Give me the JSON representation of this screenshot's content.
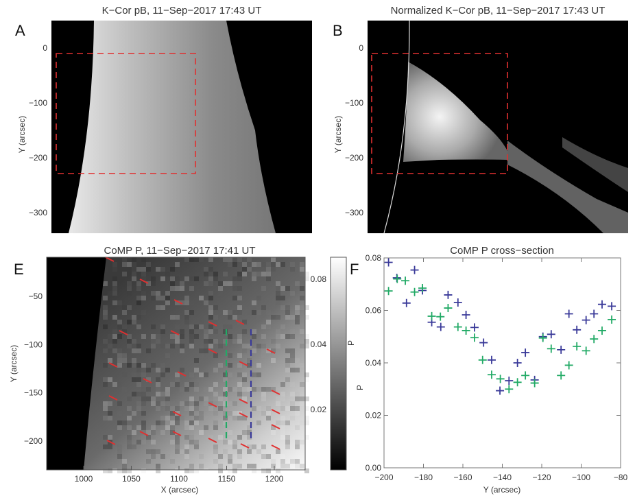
{
  "panels": {
    "A": {
      "letter": "A",
      "title": "K−Cor pB, 11−Sep−2017 17:43 UT",
      "ylabel": "Y (arcsec)",
      "yticks": [
        "0",
        "−100",
        "−200",
        "−300"
      ]
    },
    "B": {
      "letter": "B",
      "title": "Normalized K−Cor pB, 11−Sep−2017 17:43 UT",
      "ylabel": "Y (arcsec)",
      "yticks": [
        "0",
        "−100",
        "−200",
        "−300"
      ]
    },
    "E": {
      "letter": "E",
      "title": "CoMP P, 11−Sep−2017 17:41 UT",
      "xlabel": "X (arcsec)",
      "ylabel": "Y (arcsec)",
      "xticks": [
        "1000",
        "1050",
        "1100",
        "1150",
        "1200"
      ],
      "yticks": [
        "−50",
        "−100",
        "−150",
        "−200"
      ],
      "colorbar": {
        "label": "P",
        "ticks": [
          "0.08",
          "0.04",
          "0.02"
        ],
        "scale": "log"
      },
      "cut_colors": {
        "green": "#22aa66",
        "blue": "#3a3a99"
      },
      "vector_color": "#e03030"
    },
    "F": {
      "letter": "F"
    }
  },
  "box_color": "#e03030",
  "chart_data": {
    "type": "scatter",
    "title": "CoMP P cross−section",
    "xlabel": "Y (arcsec)",
    "ylabel": "P",
    "xlim": [
      -200,
      -80
    ],
    "ylim": [
      0,
      0.08
    ],
    "xticks": [
      "−200",
      "−180",
      "−160",
      "−140",
      "−120",
      "−100",
      "−80"
    ],
    "yticks": [
      "0.00",
      "0.02",
      "0.04",
      "0.06",
      "0.08"
    ],
    "grid": false,
    "marker": "plus",
    "series": [
      {
        "color": "#3a3a99",
        "points": [
          [
            -197.7,
            0.0783
          ],
          [
            -193.5,
            0.0724
          ],
          [
            -188.6,
            0.0628
          ],
          [
            -184.5,
            0.0754
          ],
          [
            -180.5,
            0.0676
          ],
          [
            -175.8,
            0.0555
          ],
          [
            -171.2,
            0.0537
          ],
          [
            -167.5,
            0.0659
          ],
          [
            -162.5,
            0.063
          ],
          [
            -158.4,
            0.0583
          ],
          [
            -154.1,
            0.0535
          ],
          [
            -149.5,
            0.0477
          ],
          [
            -145.4,
            0.0411
          ],
          [
            -141.2,
            0.0294
          ],
          [
            -136.6,
            0.0332
          ],
          [
            -132.3,
            0.04
          ],
          [
            -128.3,
            0.0439
          ],
          [
            -123.6,
            0.0335
          ],
          [
            -119.4,
            0.05
          ],
          [
            -115.2,
            0.0509
          ],
          [
            -110.2,
            0.045
          ],
          [
            -106.2,
            0.0587
          ],
          [
            -102.2,
            0.0526
          ],
          [
            -97.5,
            0.0563
          ],
          [
            -93.5,
            0.0587
          ],
          [
            -89.4,
            0.0623
          ],
          [
            -84.5,
            0.0616
          ]
        ]
      },
      {
        "color": "#22aa66",
        "points": [
          [
            -197.7,
            0.0674
          ],
          [
            -193.3,
            0.072
          ],
          [
            -189.2,
            0.0713
          ],
          [
            -184.5,
            0.067
          ],
          [
            -180.5,
            0.0685
          ],
          [
            -175.8,
            0.0578
          ],
          [
            -171.4,
            0.0576
          ],
          [
            -167.5,
            0.0609
          ],
          [
            -162.5,
            0.0537
          ],
          [
            -158.4,
            0.0523
          ],
          [
            -154.1,
            0.0496
          ],
          [
            -150.0,
            0.0411
          ],
          [
            -145.4,
            0.0355
          ],
          [
            -141.0,
            0.0339
          ],
          [
            -136.6,
            0.03
          ],
          [
            -132.3,
            0.0326
          ],
          [
            -128.3,
            0.0352
          ],
          [
            -123.6,
            0.0323
          ],
          [
            -119.4,
            0.0495
          ],
          [
            -115.2,
            0.0454
          ],
          [
            -110.2,
            0.0352
          ],
          [
            -106.2,
            0.0391
          ],
          [
            -102.2,
            0.0463
          ],
          [
            -97.5,
            0.0446
          ],
          [
            -93.5,
            0.0491
          ],
          [
            -89.4,
            0.0523
          ],
          [
            -84.5,
            0.0565
          ]
        ]
      }
    ]
  }
}
